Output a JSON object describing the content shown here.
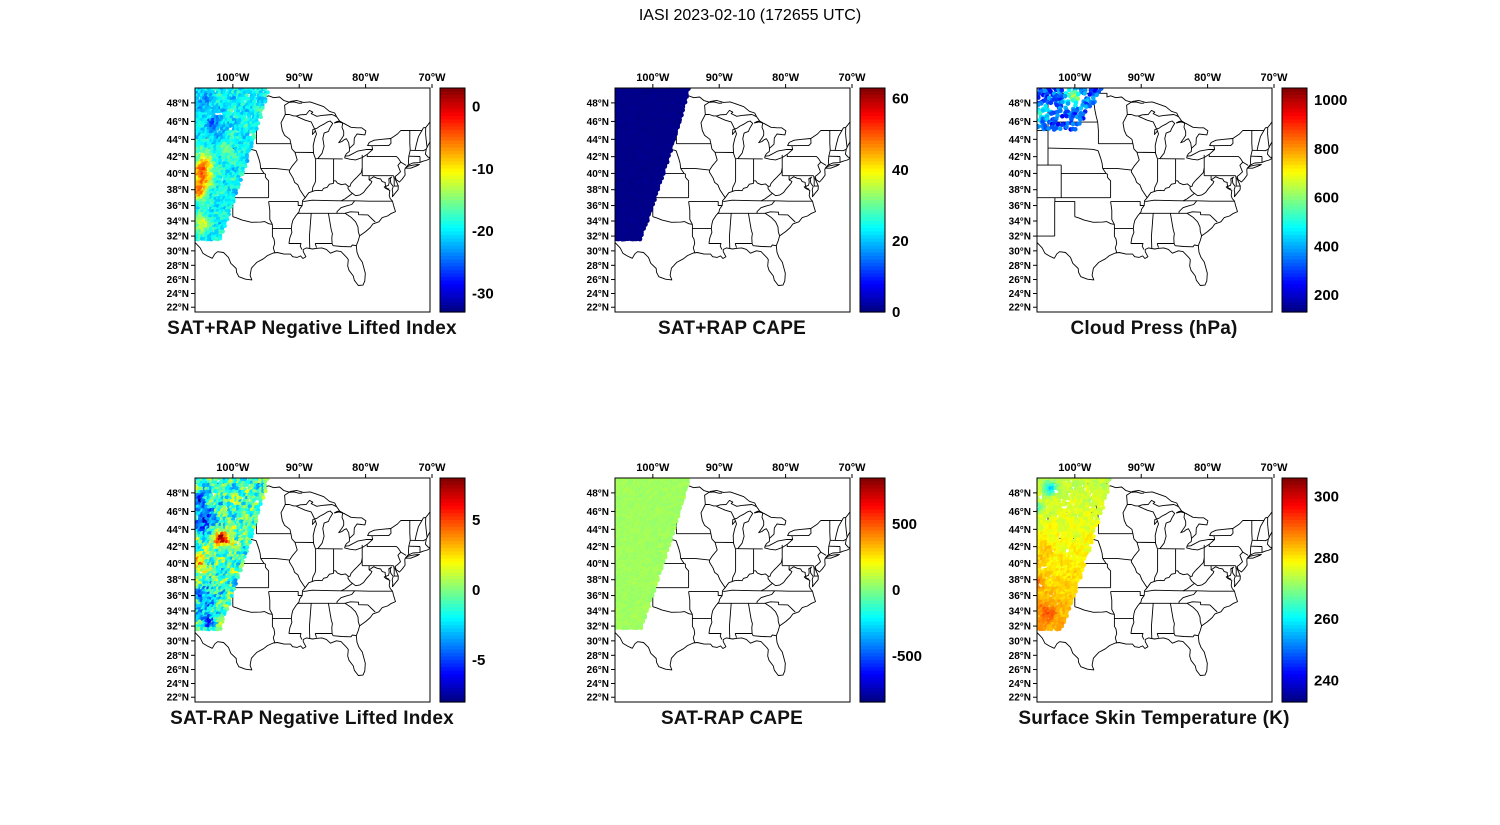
{
  "figure_title": "IASI 2023-02-10 (172655 UTC)",
  "chart_data": [
    {
      "type": "scatter",
      "title": "SAT+RAP Negative Lifted Index",
      "geo": {
        "lon_range": [
          -105.7,
          -70.3
        ],
        "lat_range": [
          21.3,
          49.55
        ],
        "projection": "mercator",
        "region": "central and eastern United States with state borders"
      },
      "x_axis": {
        "tick_values": [
          -100,
          -90,
          -80,
          -70
        ],
        "tick_labels": [
          "100°W",
          "90°W",
          "80°W",
          "70°W"
        ]
      },
      "y_axis": {
        "tick_values": [
          48,
          46,
          44,
          42,
          40,
          38,
          36,
          34,
          32,
          30,
          28,
          26,
          24,
          22
        ],
        "tick_labels": [
          "48°N",
          "46°N",
          "44°N",
          "42°N",
          "40°N",
          "38°N",
          "36°N",
          "34°N",
          "32°N",
          "30°N",
          "28°N",
          "26°N",
          "24°N",
          "22°N"
        ]
      },
      "colorbar": {
        "colormap": "jet",
        "range": [
          -33,
          3
        ],
        "tick_values": [
          0,
          -10,
          -20,
          -30
        ],
        "tick_labels": [
          "0",
          "-10",
          "-20",
          "-30"
        ]
      },
      "swath": {
        "description": "IASI overpass swath: diagonal band over the high plains, mostly -15 to -24 (cyan/blue) with warm pockets -2 to -8 near 33-41N on the west side",
        "dlat": 0.33,
        "dlon": 0.34,
        "dot_r": 2.1,
        "dropout": 0.05,
        "jitter": 0.14,
        "geom": {
          "latTop": 49.45,
          "latBot": 31.55,
          "rightTop": -94.55,
          "rightBot": -101.9
        },
        "field": {
          "base": -19.5,
          "noise": 2.4,
          "tex": 1.5,
          "blobs": [
            {
              "lat": 40.2,
              "lon": -104.4,
              "slat": 2.0,
              "slon": 1.4,
              "amp": 15
            },
            {
              "lat": 37.8,
              "lon": -105.2,
              "slat": 1.3,
              "slon": 1.2,
              "amp": 11
            },
            {
              "lat": 33.6,
              "lon": -104.6,
              "slat": 1.1,
              "slon": 1.2,
              "amp": 8
            },
            {
              "lat": 45.6,
              "lon": -102.6,
              "slat": 1.6,
              "slon": 1.4,
              "amp": -5
            },
            {
              "lat": 48.2,
              "lon": -104.8,
              "slat": 1.0,
              "slon": 1.4,
              "amp": -4
            },
            {
              "lat": 42.6,
              "lon": -100.9,
              "slat": 1.1,
              "slon": 1.1,
              "amp": 4
            }
          ]
        }
      }
    },
    {
      "type": "scatter",
      "title": "SAT+RAP CAPE",
      "geo": {
        "lon_range": [
          -105.7,
          -70.3
        ],
        "lat_range": [
          21.3,
          49.55
        ],
        "projection": "mercator",
        "region": "central and eastern United States with state borders"
      },
      "x_axis": {
        "tick_values": [
          -100,
          -90,
          -80,
          -70
        ],
        "tick_labels": [
          "100°W",
          "90°W",
          "80°W",
          "70°W"
        ]
      },
      "y_axis": {
        "tick_values": [
          48,
          46,
          44,
          42,
          40,
          38,
          36,
          34,
          32,
          30,
          28,
          26,
          24,
          22
        ],
        "tick_labels": [
          "48°N",
          "46°N",
          "44°N",
          "42°N",
          "40°N",
          "38°N",
          "36°N",
          "34°N",
          "32°N",
          "30°N",
          "28°N",
          "26°N",
          "24°N",
          "22°N"
        ]
      },
      "colorbar": {
        "colormap": "jet",
        "range": [
          0,
          63
        ],
        "tick_values": [
          60,
          40,
          20,
          0
        ],
        "tick_labels": [
          "60",
          "40",
          "20",
          "0"
        ]
      },
      "swath": {
        "description": "Entire swath near 0 CAPE: solid dark navy diagonal band",
        "dlat": 0.27,
        "dlon": 0.27,
        "dot_r": 2.4,
        "dropout": 0.0,
        "jitter": 0.1,
        "geom": {
          "latTop": 49.45,
          "latBot": 31.55,
          "rightTop": -94.55,
          "rightBot": -101.9
        },
        "field": {
          "base": 0.6,
          "noise": 0.5,
          "tex": 0,
          "blobs": []
        }
      }
    },
    {
      "type": "scatter",
      "title": "Cloud Press (hPa)",
      "geo": {
        "lon_range": [
          -105.7,
          -70.3
        ],
        "lat_range": [
          21.3,
          49.55
        ],
        "projection": "mercator",
        "region": "central and eastern United States with state borders"
      },
      "x_axis": {
        "tick_values": [
          -100,
          -90,
          -80,
          -70
        ],
        "tick_labels": [
          "100°W",
          "90°W",
          "80°W",
          "70°W"
        ]
      },
      "y_axis": {
        "tick_values": [
          48,
          46,
          44,
          42,
          40,
          38,
          36,
          34,
          32,
          30,
          28,
          26,
          24,
          22
        ],
        "tick_labels": [
          "48°N",
          "46°N",
          "44°N",
          "42°N",
          "40°N",
          "38°N",
          "36°N",
          "34°N",
          "32°N",
          "30°N",
          "28°N",
          "26°N",
          "24°N",
          "22°N"
        ]
      },
      "colorbar": {
        "colormap": "jet",
        "range": [
          130,
          1050
        ],
        "tick_values": [
          1000,
          800,
          600,
          400,
          200
        ],
        "tick_labels": [
          "1000",
          "800",
          "600",
          "400",
          "200"
        ]
      },
      "swath": {
        "description": "Sparse cloudy retrievals only near 45-49N, 98-106W: blue/cyan dots 200-450 hPa with greener 500-650 hPa patch to the east",
        "dlat": 0.3,
        "dlon": 0.32,
        "dot_r": 2.3,
        "dropout": 0.45,
        "jitter": 0.3,
        "geom": {
          "latTop": 49.45,
          "latBot": 45.2,
          "rightTop": -95.8,
          "rightBot": -99.8
        },
        "field": {
          "base": 320,
          "noise": 90,
          "tex": 0,
          "blobs": [
            {
              "lat": 48.6,
              "lon": -100.2,
              "slat": 0.9,
              "slon": 1.4,
              "amp": 270
            },
            {
              "lat": 46.9,
              "lon": -104.9,
              "slat": 0.9,
              "slon": 1.1,
              "amp": 150
            }
          ]
        }
      }
    },
    {
      "type": "scatter",
      "title": "SAT-RAP Negative Lifted Index",
      "geo": {
        "lon_range": [
          -105.7,
          -70.3
        ],
        "lat_range": [
          21.3,
          49.55
        ],
        "projection": "mercator",
        "region": "central and eastern United States with state borders"
      },
      "x_axis": {
        "tick_values": [
          -100,
          -90,
          -80,
          -70
        ],
        "tick_labels": [
          "100°W",
          "90°W",
          "80°W",
          "70°W"
        ]
      },
      "y_axis": {
        "tick_values": [
          48,
          46,
          44,
          42,
          40,
          38,
          36,
          34,
          32,
          30,
          28,
          26,
          24,
          22
        ],
        "tick_labels": [
          "48°N",
          "46°N",
          "44°N",
          "42°N",
          "40°N",
          "38°N",
          "36°N",
          "34°N",
          "32°N",
          "30°N",
          "28°N",
          "26°N",
          "24°N",
          "22°N"
        ]
      },
      "colorbar": {
        "colormap": "jet",
        "range": [
          -8,
          8
        ],
        "tick_values": [
          5,
          0,
          -5
        ],
        "tick_labels": [
          "5",
          "0",
          "-5"
        ]
      },
      "swath": {
        "description": "Speckled differences mostly -3 to +2 (blue/cyan/green) with a warm +4 to +6 streak near 42-44N and cooler patches north and south",
        "dlat": 0.33,
        "dlon": 0.34,
        "dot_r": 2.1,
        "dropout": 0.05,
        "jitter": 0.14,
        "geom": {
          "latTop": 49.45,
          "latBot": 31.55,
          "rightTop": -94.55,
          "rightBot": -101.9
        },
        "field": {
          "base": -0.8,
          "noise": 2.2,
          "tex": 1.2,
          "blobs": [
            {
              "lat": 42.9,
              "lon": -101.6,
              "slat": 0.9,
              "slon": 1.5,
              "amp": 6.5
            },
            {
              "lat": 44.8,
              "lon": -104.0,
              "slat": 1.4,
              "slon": 1.4,
              "amp": -4.5
            },
            {
              "lat": 47.2,
              "lon": -105.0,
              "slat": 1.3,
              "slon": 1.3,
              "amp": -3.5
            },
            {
              "lat": 35.6,
              "lon": -104.2,
              "slat": 1.8,
              "slon": 1.6,
              "amp": -3.5
            },
            {
              "lat": 32.8,
              "lon": -103.6,
              "slat": 1.1,
              "slon": 1.1,
              "amp": -4
            },
            {
              "lat": 39.8,
              "lon": -104.9,
              "slat": 1.4,
              "slon": 1.2,
              "amp": 3.5
            }
          ]
        }
      }
    },
    {
      "type": "scatter",
      "title": "SAT-RAP CAPE",
      "geo": {
        "lon_range": [
          -105.7,
          -70.3
        ],
        "lat_range": [
          21.3,
          49.55
        ],
        "projection": "mercator",
        "region": "central and eastern United States with state borders"
      },
      "x_axis": {
        "tick_values": [
          -100,
          -90,
          -80,
          -70
        ],
        "tick_labels": [
          "100°W",
          "90°W",
          "80°W",
          "70°W"
        ]
      },
      "y_axis": {
        "tick_values": [
          48,
          46,
          44,
          42,
          40,
          38,
          36,
          34,
          32,
          30,
          28,
          26,
          24,
          22
        ],
        "tick_labels": [
          "48°N",
          "46°N",
          "44°N",
          "42°N",
          "40°N",
          "38°N",
          "36°N",
          "34°N",
          "32°N",
          "30°N",
          "28°N",
          "26°N",
          "24°N",
          "22°N"
        ]
      },
      "colorbar": {
        "colormap": "jet",
        "range": [
          -850,
          850
        ],
        "tick_values": [
          500,
          0,
          -500
        ],
        "tick_labels": [
          "500",
          "0",
          "-500"
        ]
      },
      "swath": {
        "description": "Near-zero CAPE differences across the whole swath: uniform light-green band",
        "dlat": 0.28,
        "dlon": 0.28,
        "dot_r": 2.3,
        "dropout": 0.02,
        "jitter": 0.1,
        "geom": {
          "latTop": 49.45,
          "latBot": 31.55,
          "rightTop": -94.55,
          "rightBot": -101.9
        },
        "field": {
          "base": 55,
          "noise": 28,
          "tex": 0,
          "blobs": []
        }
      }
    },
    {
      "type": "scatter",
      "title": "Surface Skin Temperature (K)",
      "geo": {
        "lon_range": [
          -105.7,
          -70.3
        ],
        "lat_range": [
          21.3,
          49.55
        ],
        "projection": "mercator",
        "region": "central and eastern United States with state borders"
      },
      "x_axis": {
        "tick_values": [
          -100,
          -90,
          -80,
          -70
        ],
        "tick_labels": [
          "100°W",
          "90°W",
          "80°W",
          "70°W"
        ]
      },
      "y_axis": {
        "tick_values": [
          48,
          46,
          44,
          42,
          40,
          38,
          36,
          34,
          32,
          30,
          28,
          26,
          24,
          22
        ],
        "tick_labels": [
          "48°N",
          "46°N",
          "44°N",
          "42°N",
          "40°N",
          "38°N",
          "36°N",
          "34°N",
          "32°N",
          "30°N",
          "28°N",
          "26°N",
          "24°N",
          "22°N"
        ]
      },
      "colorbar": {
        "colormap": "jet",
        "range": [
          233,
          306
        ],
        "tick_values": [
          300,
          280,
          260,
          240
        ],
        "tick_labels": [
          "300",
          "280",
          "260",
          "240"
        ]
      },
      "swath": {
        "description": "Skin temperature ~272-285 K (green/yellow) in the north grading to ~284-296 K (orange/red) south of 38N, with cold cyan specks near 46-49N",
        "dlat": 0.33,
        "dlon": 0.34,
        "dot_r": 2.1,
        "dropout": 0.08,
        "jitter": 0.14,
        "geom": {
          "latTop": 49.45,
          "latBot": 31.55,
          "rightTop": -94.55,
          "rightBot": -101.9
        },
        "field": {
          "base": 281,
          "lat_ref": 38,
          "lat_gain": 0.6,
          "noise": 2.2,
          "tex": 1.4,
          "blobs": [
            {
              "lat": 33.8,
              "lon": -104.2,
              "slat": 1.5,
              "slon": 1.4,
              "amp": 7
            },
            {
              "lat": 37.6,
              "lon": -105.4,
              "slat": 1.2,
              "slon": 1.0,
              "amp": 6
            },
            {
              "lat": 41.5,
              "lon": -104.5,
              "slat": 1.5,
              "slon": 1.2,
              "amp": 4
            },
            {
              "lat": 48.4,
              "lon": -103.6,
              "slat": 0.7,
              "slon": 1.0,
              "amp": -16
            },
            {
              "lat": 46.3,
              "lon": -105.6,
              "slat": 0.6,
              "slon": 0.8,
              "amp": -12
            }
          ]
        }
      }
    }
  ]
}
